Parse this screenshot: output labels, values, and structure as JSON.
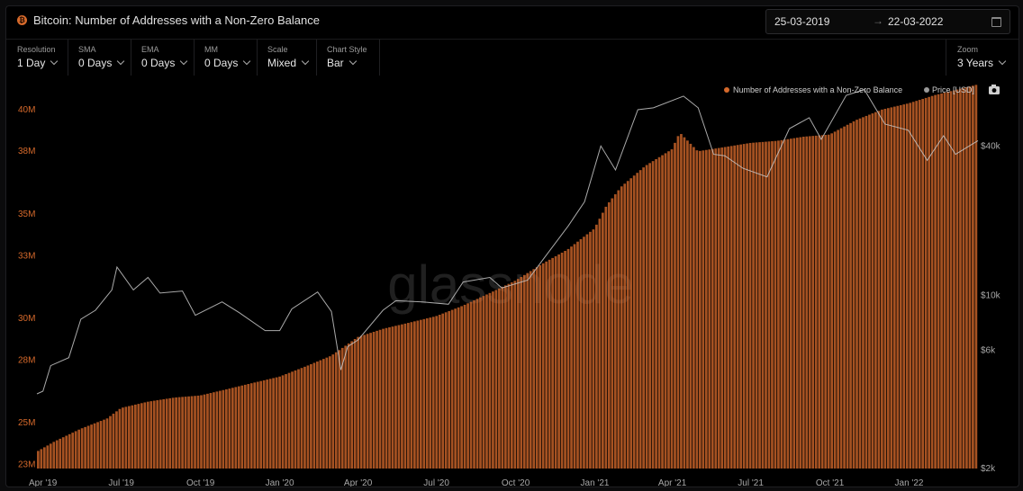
{
  "header": {
    "title": "Bitcoin: Number of Addresses with a Non-Zero Balance",
    "coin_icon": "bitcoin-icon",
    "date_from": "25-03-2019",
    "date_arrow": "→",
    "date_to": "22-03-2022"
  },
  "controls": [
    {
      "label": "Resolution",
      "value": "1 Day",
      "name": "resolution"
    },
    {
      "label": "SMA",
      "value": "0 Days",
      "name": "sma"
    },
    {
      "label": "EMA",
      "value": "0 Days",
      "name": "ema"
    },
    {
      "label": "MM",
      "value": "0 Days",
      "name": "mm"
    },
    {
      "label": "Scale",
      "value": "Mixed",
      "name": "scale"
    },
    {
      "label": "Chart Style",
      "value": "Bar",
      "name": "chart-style"
    }
  ],
  "zoom": {
    "label": "Zoom",
    "value": "3 Years"
  },
  "watermark": "glassnode",
  "colors": {
    "addresses": "#d5692b",
    "price": "#c8c8c8",
    "background": "#000000"
  },
  "chart_data": {
    "type": "bar",
    "title": "Bitcoin: Number of Addresses with a Non-Zero Balance",
    "legend_position": "top-right",
    "x_tick_labels": [
      "Apr '19",
      "Jul '19",
      "Oct '19",
      "Jan '20",
      "Apr '20",
      "Jul '20",
      "Oct '20",
      "Jan '21",
      "Apr '21",
      "Jul '21",
      "Oct '21",
      "Jan '22"
    ],
    "x_range": [
      "2019-03-25",
      "2022-03-22"
    ],
    "y_left": {
      "ticks": [
        "23M",
        "25M",
        "28M",
        "30M",
        "33M",
        "35M",
        "38M",
        "40M"
      ],
      "ylim": [
        22800000,
        41500000
      ],
      "scale": "linear"
    },
    "y_right": {
      "ticks": [
        "$2k",
        "$6k",
        "$10k",
        "$40k"
      ],
      "scale": "log",
      "ylim": [
        2000,
        75000
      ]
    },
    "series": [
      {
        "name": "Number of Addresses with a Non-Zero Balance",
        "axis": "left",
        "style": "bar",
        "points": [
          [
            "2019-03-25",
            23.6
          ],
          [
            "2019-04-15",
            24.1
          ],
          [
            "2019-05-15",
            24.7
          ],
          [
            "2019-06-15",
            25.2
          ],
          [
            "2019-07-01",
            25.7
          ],
          [
            "2019-08-01",
            26.0
          ],
          [
            "2019-09-01",
            26.2
          ],
          [
            "2019-10-01",
            26.3
          ],
          [
            "2019-11-01",
            26.6
          ],
          [
            "2019-12-01",
            26.9
          ],
          [
            "2020-01-01",
            27.2
          ],
          [
            "2020-02-01",
            27.7
          ],
          [
            "2020-03-01",
            28.2
          ],
          [
            "2020-03-15",
            28.6
          ],
          [
            "2020-04-01",
            29.1
          ],
          [
            "2020-05-01",
            29.5
          ],
          [
            "2020-06-01",
            29.8
          ],
          [
            "2020-07-01",
            30.1
          ],
          [
            "2020-08-01",
            30.6
          ],
          [
            "2020-09-01",
            31.2
          ],
          [
            "2020-10-01",
            31.8
          ],
          [
            "2020-11-01",
            32.6
          ],
          [
            "2020-12-01",
            33.3
          ],
          [
            "2021-01-01",
            34.3
          ],
          [
            "2021-01-15",
            35.4
          ],
          [
            "2021-02-01",
            36.3
          ],
          [
            "2021-03-01",
            37.3
          ],
          [
            "2021-04-01",
            38.1
          ],
          [
            "2021-04-10",
            38.9
          ],
          [
            "2021-05-01",
            38.0
          ],
          [
            "2021-06-01",
            38.2
          ],
          [
            "2021-07-01",
            38.4
          ],
          [
            "2021-08-01",
            38.5
          ],
          [
            "2021-09-01",
            38.7
          ],
          [
            "2021-10-01",
            38.8
          ],
          [
            "2021-11-01",
            39.5
          ],
          [
            "2021-12-01",
            40.0
          ],
          [
            "2022-01-01",
            40.3
          ],
          [
            "2022-02-01",
            40.7
          ],
          [
            "2022-03-22",
            41.2
          ]
        ],
        "unit": "M"
      },
      {
        "name": "Price [USD]",
        "axis": "right",
        "style": "line",
        "points": [
          [
            "2019-03-25",
            4000
          ],
          [
            "2019-04-01",
            4100
          ],
          [
            "2019-04-10",
            5200
          ],
          [
            "2019-05-01",
            5600
          ],
          [
            "2019-05-15",
            8000
          ],
          [
            "2019-06-01",
            8700
          ],
          [
            "2019-06-20",
            10500
          ],
          [
            "2019-06-26",
            13000
          ],
          [
            "2019-07-15",
            10500
          ],
          [
            "2019-08-01",
            11800
          ],
          [
            "2019-08-15",
            10200
          ],
          [
            "2019-09-10",
            10400
          ],
          [
            "2019-09-25",
            8300
          ],
          [
            "2019-10-26",
            9400
          ],
          [
            "2019-11-15",
            8500
          ],
          [
            "2019-12-15",
            7200
          ],
          [
            "2020-01-01",
            7200
          ],
          [
            "2020-01-15",
            8800
          ],
          [
            "2020-02-14",
            10300
          ],
          [
            "2020-03-01",
            8600
          ],
          [
            "2020-03-12",
            5000
          ],
          [
            "2020-03-20",
            6200
          ],
          [
            "2020-04-01",
            6600
          ],
          [
            "2020-04-30",
            8700
          ],
          [
            "2020-05-15",
            9500
          ],
          [
            "2020-06-15",
            9400
          ],
          [
            "2020-07-15",
            9200
          ],
          [
            "2020-08-01",
            11300
          ],
          [
            "2020-09-01",
            11800
          ],
          [
            "2020-09-15",
            10700
          ],
          [
            "2020-10-15",
            11500
          ],
          [
            "2020-11-01",
            13800
          ],
          [
            "2020-12-01",
            19000
          ],
          [
            "2020-12-20",
            23800
          ],
          [
            "2021-01-08",
            40000
          ],
          [
            "2021-01-25",
            32000
          ],
          [
            "2021-02-20",
            56000
          ],
          [
            "2021-03-10",
            57000
          ],
          [
            "2021-04-14",
            63500
          ],
          [
            "2021-05-01",
            57000
          ],
          [
            "2021-05-19",
            37000
          ],
          [
            "2021-06-01",
            36500
          ],
          [
            "2021-06-22",
            32500
          ],
          [
            "2021-07-20",
            30000
          ],
          [
            "2021-08-15",
            47000
          ],
          [
            "2021-09-07",
            52000
          ],
          [
            "2021-09-21",
            42500
          ],
          [
            "2021-10-20",
            64000
          ],
          [
            "2021-11-10",
            67500
          ],
          [
            "2021-12-04",
            49000
          ],
          [
            "2021-12-31",
            46300
          ],
          [
            "2022-01-22",
            35000
          ],
          [
            "2022-02-10",
            44000
          ],
          [
            "2022-02-24",
            37000
          ],
          [
            "2022-03-22",
            42000
          ]
        ]
      }
    ]
  }
}
